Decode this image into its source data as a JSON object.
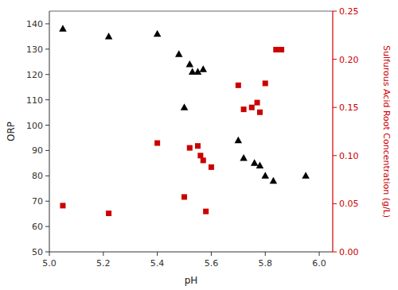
{
  "chart_data": {
    "type": "scatter",
    "xlabel": "pH",
    "ylabel": "ORP",
    "y2label": "Sulfurous Acid Root Concentration (g/L)",
    "xlim": [
      5.0,
      6.05
    ],
    "ylim": [
      50,
      145
    ],
    "y2lim": [
      0.0,
      0.25
    ],
    "xticks": [
      {
        "value": 5.0,
        "label": "5.0"
      },
      5.2,
      5.4,
      5.6,
      5.8,
      {
        "value": 6.0,
        "label": "6.0"
      }
    ],
    "yticks": [
      50,
      60,
      70,
      80,
      90,
      100,
      110,
      120,
      130,
      140
    ],
    "y2ticks": [
      {
        "value": 0.0,
        "label": "0.00"
      },
      0.05,
      {
        "value": 0.1,
        "label": "0.10"
      },
      0.15,
      {
        "value": 0.2,
        "label": "0.20"
      },
      0.25
    ],
    "series": [
      {
        "color": "#000000",
        "marker": "triangle",
        "x": [
          5.05,
          5.22,
          5.4,
          5.48,
          5.52,
          5.53,
          5.55,
          5.57,
          5.5,
          5.7,
          5.72,
          5.76,
          5.78,
          5.8,
          5.83,
          5.95
        ],
        "values": [
          138,
          135,
          136,
          128,
          124,
          121,
          121,
          122,
          107,
          94,
          87,
          85,
          84,
          80,
          78,
          80
        ]
      },
      {
        "color": "#cc0000",
        "marker": "square",
        "axis": "y2",
        "x": [
          5.05,
          5.22,
          5.4,
          5.5,
          5.52,
          5.55,
          5.56,
          5.57,
          5.58,
          5.6,
          5.7,
          5.72,
          5.75,
          5.77,
          5.78,
          5.8,
          5.84,
          5.86
        ],
        "values": [
          0.048,
          0.04,
          0.113,
          0.057,
          0.108,
          0.11,
          0.1,
          0.095,
          0.042,
          0.088,
          0.173,
          0.148,
          0.15,
          0.155,
          0.145,
          0.175,
          0.21,
          0.21
        ]
      }
    ]
  }
}
